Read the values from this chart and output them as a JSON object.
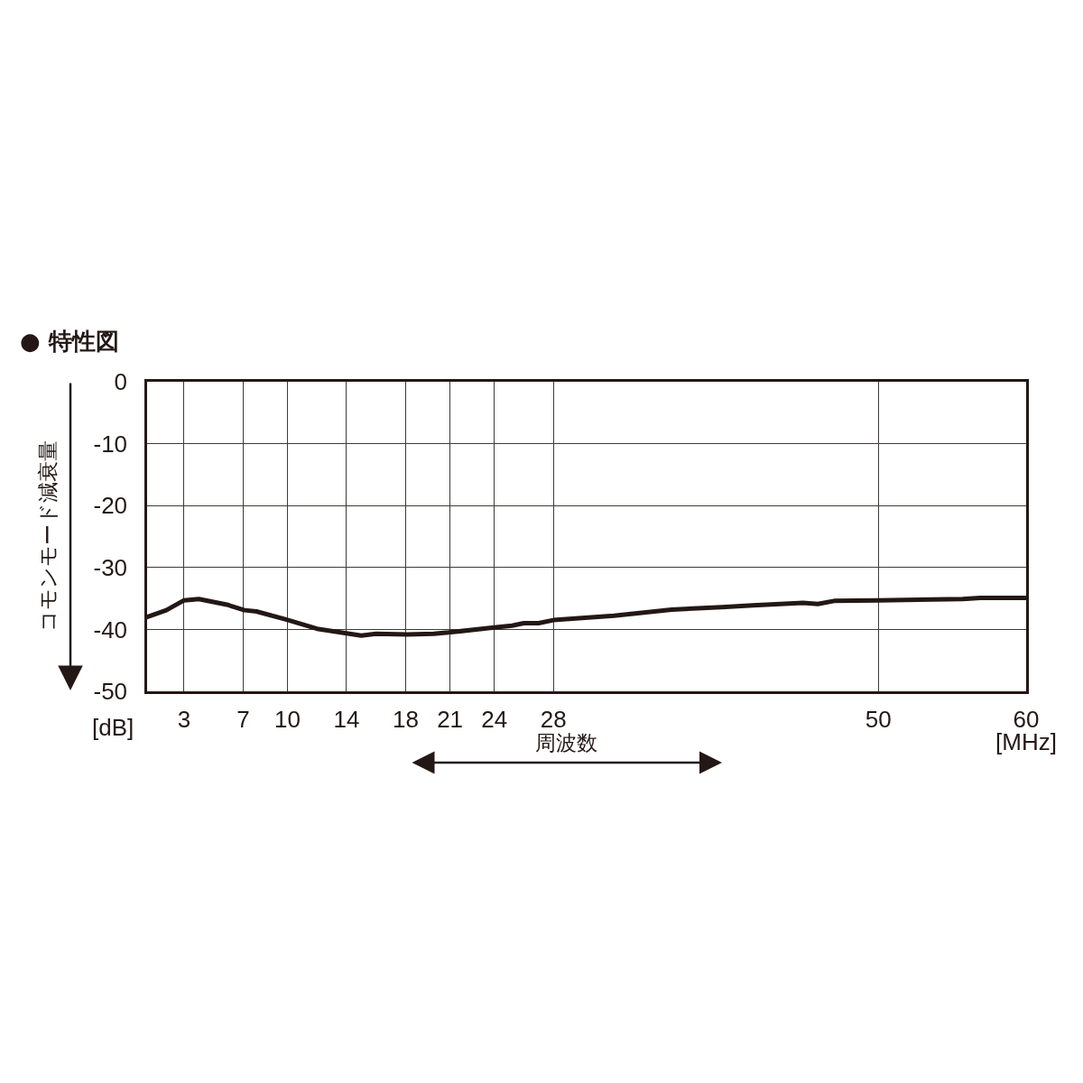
{
  "chart_data": {
    "type": "line",
    "title": "● 特性図",
    "xlabel": "周波数",
    "ylabel": "コモンモード減衰量",
    "annotations": [
      "[dB]",
      "[MHz]"
    ],
    "x": [
      0.5,
      1.8,
      3.0,
      4.0,
      5.9,
      7.1,
      7.9,
      9.9,
      12.0,
      13.6,
      15.0,
      16.0,
      18.1,
      19.9,
      20.9,
      24.0,
      25.2,
      26.0,
      27.0,
      28.0,
      32.1,
      36.0,
      39.4,
      41.5,
      44.9,
      45.9,
      47.0,
      50.0,
      55.7,
      56.9,
      60.0
    ],
    "series": [
      {
        "color": "#231815",
        "values": [
          -38.0,
          -36.9,
          -35.3,
          -35.1,
          -36.0,
          -36.9,
          -37.1,
          -38.4,
          -39.9,
          -40.5,
          -41.0,
          -40.7,
          -40.8,
          -40.7,
          -40.5,
          -39.7,
          -39.4,
          -39.0,
          -39.0,
          -38.5,
          -37.8,
          -36.8,
          -36.4,
          -36.1,
          -35.7,
          -35.9,
          -35.4,
          -35.3,
          -35.1,
          -34.9,
          -34.9
        ]
      }
    ],
    "xlim": [
      0.5,
      60
    ],
    "ylim": [
      -50,
      0
    ],
    "xticks": [
      3,
      7,
      10,
      14,
      18,
      21,
      24,
      28,
      50,
      60
    ],
    "yticks": [
      0,
      -10,
      -20,
      -30,
      -40,
      -50
    ],
    "grid": true,
    "marker": "none",
    "line_style": "solid"
  }
}
